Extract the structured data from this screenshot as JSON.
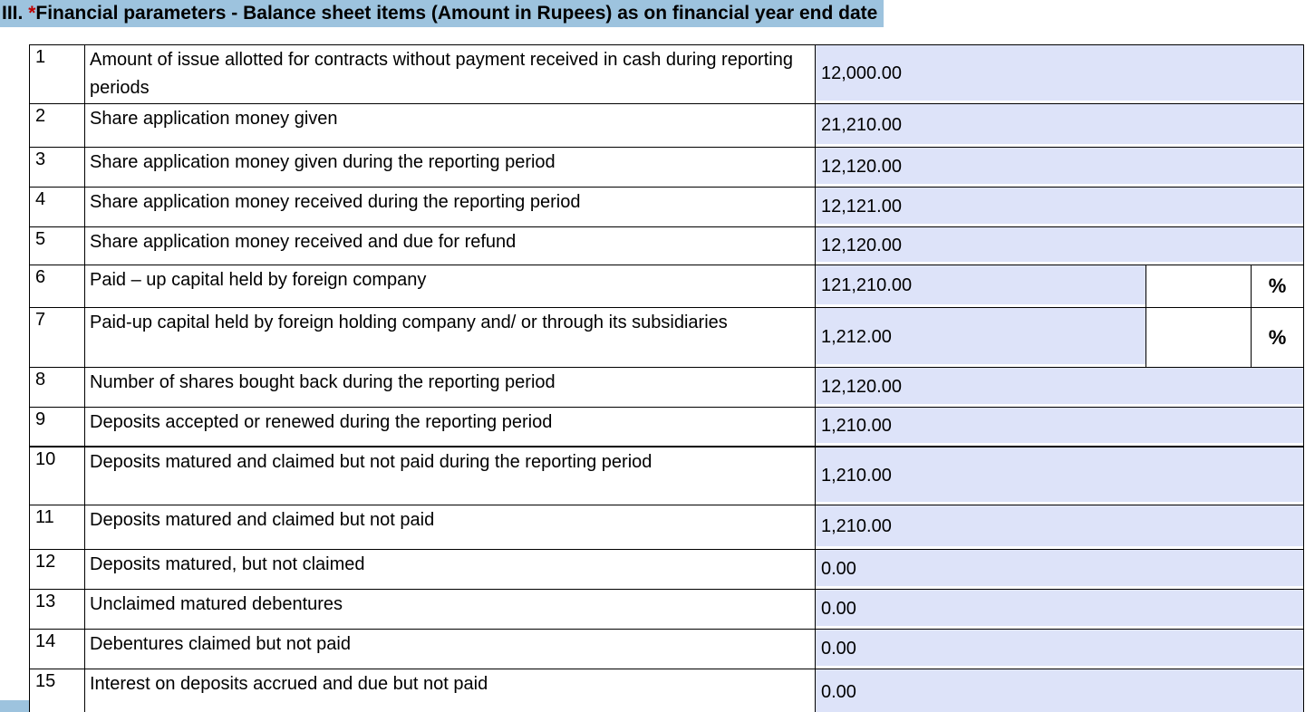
{
  "header": {
    "numeral": "III.",
    "asterisk": "*",
    "title": "Financial parameters - Balance sheet items (Amount in Rupees) as on financial year end date"
  },
  "percent_sign": "%",
  "colors": {
    "header_highlight": "#9dc3de",
    "field_background": "#dde3f9",
    "asterisk_red": "#c00000",
    "border": "#000000"
  },
  "tables": [
    {
      "rows": [
        {
          "num": "1",
          "label": "Amount of issue allotted for contracts without payment received in cash during reporting periods",
          "value": "12,000.00",
          "percent": false
        },
        {
          "num": "2",
          "label": "Share application money given",
          "value": "21,210.00",
          "percent": false
        },
        {
          "num": "3",
          "label": "Share application money given during the reporting period",
          "value": "12,120.00",
          "percent": false
        },
        {
          "num": "4",
          "label": "Share application money received during the reporting period",
          "value": "12,121.00",
          "percent": false
        },
        {
          "num": "5",
          "label": "Share application money received and due for refund",
          "value": "12,120.00",
          "percent": false
        },
        {
          "num": "6",
          "label": "Paid – up capital held by foreign company",
          "value": "121,210.00",
          "percent": true,
          "percent_value": ""
        },
        {
          "num": "7",
          "label": "Paid-up capital held by foreign holding company and/ or through its subsidiaries",
          "value": "1,212.00",
          "percent": true,
          "percent_value": ""
        },
        {
          "num": "8",
          "label": "Number of shares bought back during the reporting period",
          "value": "12,120.00",
          "percent": false
        },
        {
          "num": "9",
          "label": "Deposits accepted or renewed during the reporting period",
          "value": "1,210.00",
          "percent": false
        }
      ]
    },
    {
      "rows": [
        {
          "num": "10",
          "label": "Deposits matured and claimed but not paid during the reporting period",
          "value": "1,210.00",
          "percent": false
        },
        {
          "num": "11",
          "label": "Deposits matured and claimed but not paid",
          "value": "1,210.00",
          "percent": false
        },
        {
          "num": "12",
          "label": "Deposits matured, but not claimed",
          "value": "0.00",
          "percent": false
        },
        {
          "num": "13",
          "label": "Unclaimed matured debentures",
          "value": "0.00",
          "percent": false
        },
        {
          "num": "14",
          "label": "Debentures claimed but not paid",
          "value": "0.00",
          "percent": false
        },
        {
          "num": "15",
          "label": "Interest on deposits accrued and due but not paid",
          "value": "0.00",
          "percent": false
        }
      ]
    }
  ]
}
